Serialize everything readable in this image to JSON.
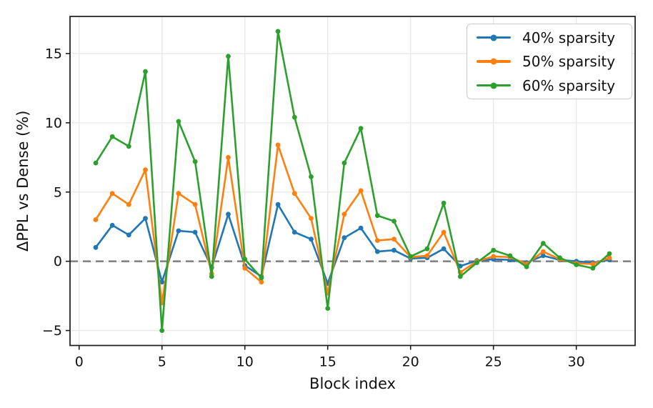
{
  "chart_data": {
    "type": "line",
    "title": "",
    "xlabel": "Block index",
    "ylabel": "ΔPPL vs Dense (%)",
    "x": [
      1,
      2,
      3,
      4,
      5,
      6,
      7,
      8,
      9,
      10,
      11,
      12,
      13,
      14,
      15,
      16,
      17,
      18,
      19,
      20,
      21,
      22,
      23,
      24,
      25,
      26,
      27,
      28,
      29,
      30,
      31,
      32
    ],
    "series": [
      {
        "name": "40% sparsity",
        "color": "#1f77b4",
        "values": [
          1.0,
          2.6,
          1.9,
          3.1,
          -1.5,
          2.2,
          2.1,
          -0.45,
          3.4,
          -0.3,
          -1.1,
          4.1,
          2.1,
          1.6,
          -1.6,
          1.7,
          2.4,
          0.7,
          0.8,
          0.2,
          0.25,
          0.9,
          -0.35,
          0.05,
          0.15,
          0.1,
          -0.1,
          0.4,
          0.1,
          0.0,
          -0.1,
          0.1
        ]
      },
      {
        "name": "50% sparsity",
        "color": "#ff7f0e",
        "values": [
          3.0,
          4.9,
          4.1,
          6.6,
          -3.0,
          4.9,
          4.1,
          -0.9,
          7.5,
          -0.5,
          -1.5,
          8.4,
          4.9,
          3.1,
          -2.3,
          3.4,
          5.1,
          1.5,
          1.6,
          0.3,
          0.4,
          2.1,
          -0.8,
          0.0,
          0.35,
          0.3,
          -0.2,
          0.7,
          0.15,
          -0.15,
          -0.2,
          0.25
        ]
      },
      {
        "name": "60% sparsity",
        "color": "#2ca02c",
        "values": [
          7.1,
          9.0,
          8.3,
          13.7,
          -5.0,
          10.1,
          7.2,
          -1.1,
          14.8,
          0.15,
          -1.2,
          16.6,
          10.4,
          6.1,
          -3.4,
          7.1,
          9.6,
          3.3,
          2.9,
          0.35,
          0.9,
          4.2,
          -1.1,
          -0.1,
          0.8,
          0.4,
          -0.4,
          1.3,
          0.25,
          -0.25,
          -0.5,
          0.55
        ]
      }
    ],
    "xticks": {
      "values": [
        0,
        5,
        10,
        15,
        20,
        25,
        30
      ],
      "labels": [
        "0",
        "5",
        "10",
        "15",
        "20",
        "25",
        "30"
      ]
    },
    "yticks": {
      "values": [
        -5,
        0,
        5,
        10,
        15
      ],
      "labels": [
        "−5",
        "0",
        "5",
        "10",
        "15"
      ]
    },
    "xlim": [
      -0.55,
      33.55
    ],
    "ylim": [
      -6.08,
      17.68
    ],
    "grid": true,
    "zero_line": {
      "y": 0,
      "style": "dashed",
      "color": "#848484"
    },
    "legend": {
      "position": "upper right"
    },
    "style": {
      "grid_color": "#e8e8e8",
      "frame_color": "#1a1a1a",
      "background": "#ffffff"
    }
  }
}
